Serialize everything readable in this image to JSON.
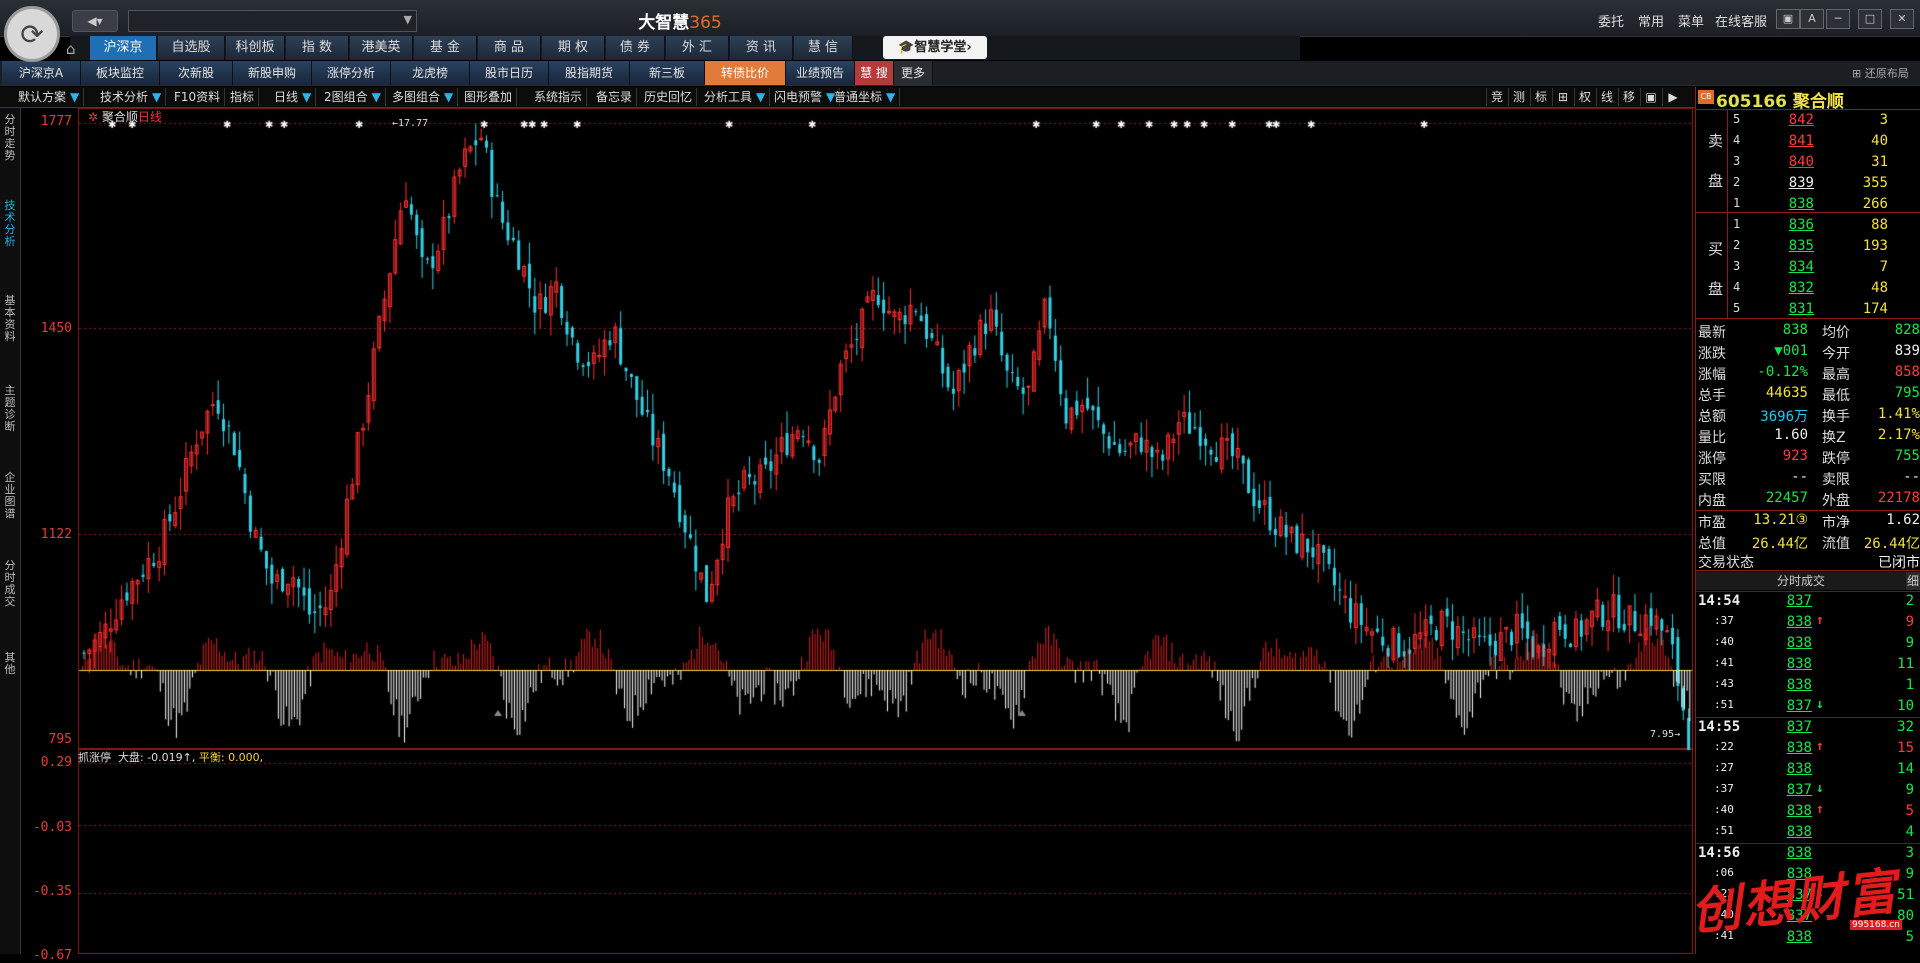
{
  "app": {
    "title_cn": "大智慧",
    "title_num": "365",
    "back_label": "◀▾"
  },
  "top_menu": [
    "委托",
    "常用",
    "菜单",
    "在线客服"
  ],
  "market_tabs": [
    "沪深京",
    "自选股",
    "科创板",
    "指 数",
    "港美英",
    "基 金",
    "商 品",
    "期 权",
    "债 券",
    "外 汇",
    "资 讯",
    "慧 信"
  ],
  "xuetang": "智慧学堂",
  "sub_tabs": [
    "沪深京A",
    "板块监控",
    "次新股",
    "新股申购",
    "涨停分析",
    "龙虎榜",
    "股市日历",
    "股指期货",
    "新三板",
    "转债比价",
    "业绩预告",
    "慧 搜",
    "更多"
  ],
  "restore_label": "还原布局",
  "toolbar": [
    "默认方案",
    "技术分析",
    "F10资料",
    "指标",
    "日线",
    "2图组合",
    "多图组合",
    "图形叠加",
    "系统指示",
    "备忘录",
    "历史回忆",
    "分析工具",
    "闪电预警",
    "普通坐标"
  ],
  "toolbar_right": [
    "竞",
    "测",
    "标",
    "⊞",
    "权",
    "线",
    "移",
    "▣",
    "▶"
  ],
  "left_tabs": [
    "分时走势",
    "技术分析",
    "基本资料",
    "主题诊断",
    "企业图谱",
    "分时成交",
    "其他"
  ],
  "chart": {
    "stock_name": "聚合顺",
    "period": "日线",
    "y_labels": [
      "1777",
      "1450",
      "1122",
      "795"
    ],
    "high_annot": "←17.77",
    "low_annot": "7.95→",
    "indicator_name": "抓涨停",
    "indicator_dapan": "大盘: -0.019↑",
    "indicator_pingheng": "平衡: 0.000",
    "ind_labels": [
      "0.29",
      "-0.03",
      "-0.35",
      "-0.67"
    ]
  },
  "chart_data": {
    "type": "candlestick",
    "title": "聚合顺 日线",
    "ylim": [
      7.95,
      17.77
    ],
    "y_ticks": [
      17.77,
      14.5,
      11.22,
      7.95
    ],
    "high": 17.77,
    "low": 7.95,
    "close_path": [
      9.3,
      9.6,
      10.2,
      10.6,
      11.0,
      11.8,
      12.8,
      13.4,
      12.6,
      11.2,
      10.4,
      10.6,
      9.9,
      10.1,
      11.8,
      13.4,
      15.1,
      16.8,
      15.3,
      16.0,
      17.1,
      17.6,
      16.3,
      15.7,
      14.8,
      15.2,
      14.2,
      13.9,
      14.5,
      13.6,
      12.8,
      12.2,
      11.2,
      10.2,
      11.5,
      12.0,
      12.1,
      12.6,
      13.0,
      12.4,
      13.8,
      14.4,
      15.1,
      14.6,
      14.9,
      14.2,
      13.4,
      14.2,
      14.7,
      13.6,
      13.4,
      14.9,
      13.1,
      13.3,
      12.8,
      12.5,
      12.7,
      12.3,
      13.0,
      12.9,
      12.6,
      12.4,
      11.8,
      11.4,
      11.1,
      11.0,
      10.5,
      10.0,
      9.7,
      9.5,
      9.4,
      9.6,
      9.8,
      9.6,
      9.4,
      9.5,
      9.7,
      9.3,
      9.8,
      9.6,
      9.9,
      10.0,
      9.8,
      9.9,
      9.5,
      8.0
    ],
    "indicator": {
      "name": "抓涨停",
      "dapan": -0.019,
      "pingheng": 0.0,
      "ylim": [
        -0.67,
        0.29
      ]
    }
  },
  "panel": {
    "cb": "CB",
    "code": "605166",
    "name": "聚合顺",
    "sell_label": [
      "卖",
      "盘"
    ],
    "buy_label": [
      "买",
      "盘"
    ],
    "sells": [
      {
        "n": "5",
        "p": "842",
        "v": "3"
      },
      {
        "n": "4",
        "p": "841",
        "v": "40"
      },
      {
        "n": "3",
        "p": "840",
        "v": "31"
      },
      {
        "n": "2",
        "p": "839",
        "v": "355"
      },
      {
        "n": "1",
        "p": "838",
        "v": "266"
      }
    ],
    "buys": [
      {
        "n": "1",
        "p": "836",
        "v": "88"
      },
      {
        "n": "2",
        "p": "835",
        "v": "193"
      },
      {
        "n": "3",
        "p": "834",
        "v": "7"
      },
      {
        "n": "4",
        "p": "832",
        "v": "48"
      },
      {
        "n": "5",
        "p": "831",
        "v": "174"
      }
    ],
    "quotes": [
      {
        "l": "最新",
        "v": "838",
        "vc": "green",
        "l2": "均价",
        "v2": "828",
        "v2c": "green"
      },
      {
        "l": "涨跌",
        "v": "▼001",
        "vc": "green",
        "l2": "今开",
        "v2": "839",
        "v2c": "wht"
      },
      {
        "l": "涨幅",
        "v": "-0.12%",
        "vc": "green",
        "l2": "最高",
        "v2": "858",
        "v2c": "red"
      },
      {
        "l": "总手",
        "v": "44635",
        "vc": "yel",
        "l2": "最低",
        "v2": "795",
        "v2c": "green"
      },
      {
        "l": "总额",
        "v": "3696万",
        "vc": "cyan",
        "l2": "换手",
        "v2": "1.41%",
        "v2c": "yel"
      },
      {
        "l": "量比",
        "v": "1.60",
        "vc": "wht",
        "l2": "换Z",
        "v2": "2.17%",
        "v2c": "yel"
      },
      {
        "l": "涨停",
        "v": "923",
        "vc": "red",
        "l2": "跌停",
        "v2": "755",
        "v2c": "green"
      },
      {
        "l": "买限",
        "v": "--",
        "vc": "wht",
        "l2": "卖限",
        "v2": "--",
        "v2c": "wht"
      },
      {
        "l": "内盘",
        "v": "22457",
        "vc": "green",
        "l2": "外盘",
        "v2": "22178",
        "v2c": "red"
      },
      {
        "l": "市盈",
        "v": "13.21③",
        "vc": "yel",
        "l2": "市净",
        "v2": "1.62",
        "v2c": "wht"
      },
      {
        "l": "总值",
        "v": "26.44亿",
        "vc": "yel",
        "l2": "流值",
        "v2": "26.44亿",
        "v2c": "yel"
      }
    ],
    "trade_state_label": "交易状态",
    "trade_state": "已闭市",
    "ticks_header": "分时成交",
    "ticks_btn": "细",
    "ticks": [
      {
        "t": "14:54",
        "p": "837",
        "v": "2",
        "a": "",
        "big": true
      },
      {
        "t": ":37",
        "p": "838",
        "v": "9",
        "a": "↑",
        "big": false
      },
      {
        "t": ":40",
        "p": "838",
        "v": "9",
        "a": "",
        "big": false
      },
      {
        "t": ":41",
        "p": "838",
        "v": "11",
        "a": "",
        "big": false
      },
      {
        "t": ":43",
        "p": "838",
        "v": "1",
        "a": "",
        "big": false
      },
      {
        "t": ":51",
        "p": "837",
        "v": "10",
        "a": "↓",
        "big": false
      },
      {
        "t": "14:55",
        "p": "837",
        "v": "32",
        "a": "",
        "big": true
      },
      {
        "t": ":22",
        "p": "838",
        "v": "15",
        "a": "↑",
        "big": false
      },
      {
        "t": ":27",
        "p": "838",
        "v": "14",
        "a": "",
        "big": false
      },
      {
        "t": ":37",
        "p": "837",
        "v": "9",
        "a": "↓",
        "big": false
      },
      {
        "t": ":40",
        "p": "838",
        "v": "5",
        "a": "↑",
        "big": false
      },
      {
        "t": ":51",
        "p": "838",
        "v": "4",
        "a": "",
        "big": false
      },
      {
        "t": "14:56",
        "p": "838",
        "v": "3",
        "a": "",
        "big": true
      },
      {
        "t": ":06",
        "p": "838",
        "v": "9",
        "a": "",
        "big": false
      },
      {
        "t": ":22",
        "p": "837",
        "v": "51",
        "a": "↓",
        "big": false
      },
      {
        "t": ":40",
        "p": "837",
        "v": "80",
        "a": "",
        "big": false
      },
      {
        "t": ":41",
        "p": "838",
        "v": "5",
        "a": "",
        "big": false
      }
    ]
  },
  "watermark": {
    "text": "创想财富",
    "sub": "995168.cn"
  }
}
